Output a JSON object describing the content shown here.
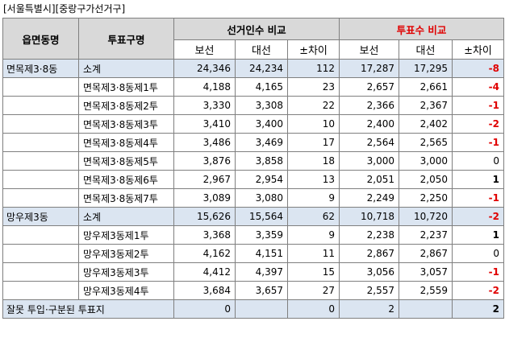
{
  "caption": "[서울특별시][중랑구가선거구]",
  "headers": {
    "col_dong": "읍면동명",
    "col_poll": "투표구명",
    "group_electors": "선거인수 비교",
    "group_voters": "투표수 비교",
    "sub_bo": "보선",
    "sub_dae": "대선",
    "sub_diff": "±차이"
  },
  "colors": {
    "group_voters_title": "#e00000",
    "negative": "#e00000",
    "subtotal_bg": "#dbe5f1",
    "header_bg": "#d9d9d9"
  },
  "rows": [
    {
      "type": "sub",
      "dong": "면목제3·8동",
      "poll": "소계",
      "e_bo": "24,346",
      "e_dae": "24,234",
      "e_diff": "112",
      "v_bo": "17,287",
      "v_dae": "17,295",
      "v_diff": "-8"
    },
    {
      "type": "row",
      "dong": "",
      "poll": "면목제3·8동제1투",
      "e_bo": "4,188",
      "e_dae": "4,165",
      "e_diff": "23",
      "v_bo": "2,657",
      "v_dae": "2,661",
      "v_diff": "-4"
    },
    {
      "type": "row",
      "dong": "",
      "poll": "면목제3·8동제2투",
      "e_bo": "3,330",
      "e_dae": "3,308",
      "e_diff": "22",
      "v_bo": "2,366",
      "v_dae": "2,367",
      "v_diff": "-1"
    },
    {
      "type": "row",
      "dong": "",
      "poll": "면목제3·8동제3투",
      "e_bo": "3,410",
      "e_dae": "3,400",
      "e_diff": "10",
      "v_bo": "2,400",
      "v_dae": "2,402",
      "v_diff": "-2"
    },
    {
      "type": "row",
      "dong": "",
      "poll": "면목제3·8동제4투",
      "e_bo": "3,486",
      "e_dae": "3,469",
      "e_diff": "17",
      "v_bo": "2,564",
      "v_dae": "2,565",
      "v_diff": "-1"
    },
    {
      "type": "row",
      "dong": "",
      "poll": "면목제3·8동제5투",
      "e_bo": "3,876",
      "e_dae": "3,858",
      "e_diff": "18",
      "v_bo": "3,000",
      "v_dae": "3,000",
      "v_diff": "0"
    },
    {
      "type": "row",
      "dong": "",
      "poll": "면목제3·8동제6투",
      "e_bo": "2,967",
      "e_dae": "2,954",
      "e_diff": "13",
      "v_bo": "2,051",
      "v_dae": "2,050",
      "v_diff": "1"
    },
    {
      "type": "row",
      "dong": "",
      "poll": "면목제3·8동제7투",
      "e_bo": "3,089",
      "e_dae": "3,080",
      "e_diff": "9",
      "v_bo": "2,249",
      "v_dae": "2,250",
      "v_diff": "-1"
    },
    {
      "type": "sub",
      "dong": "망우제3동",
      "poll": "소계",
      "e_bo": "15,626",
      "e_dae": "15,564",
      "e_diff": "62",
      "v_bo": "10,718",
      "v_dae": "10,720",
      "v_diff": "-2"
    },
    {
      "type": "row",
      "dong": "",
      "poll": "망우제3동제1투",
      "e_bo": "3,368",
      "e_dae": "3,359",
      "e_diff": "9",
      "v_bo": "2,238",
      "v_dae": "2,237",
      "v_diff": "1"
    },
    {
      "type": "row",
      "dong": "",
      "poll": "망우제3동제2투",
      "e_bo": "4,162",
      "e_dae": "4,151",
      "e_diff": "11",
      "v_bo": "2,867",
      "v_dae": "2,867",
      "v_diff": "0"
    },
    {
      "type": "row",
      "dong": "",
      "poll": "망우제3동제3투",
      "e_bo": "4,412",
      "e_dae": "4,397",
      "e_diff": "15",
      "v_bo": "3,056",
      "v_dae": "3,057",
      "v_diff": "-1"
    },
    {
      "type": "row",
      "dong": "",
      "poll": "망우제3동제4투",
      "e_bo": "3,684",
      "e_dae": "3,657",
      "e_diff": "27",
      "v_bo": "2,557",
      "v_dae": "2,559",
      "v_diff": "-2"
    }
  ],
  "footer": {
    "label": "잘못 투입·구분된 투표지",
    "e_bo": "0",
    "e_diff": "0",
    "v_bo": "2",
    "v_diff": "2"
  }
}
